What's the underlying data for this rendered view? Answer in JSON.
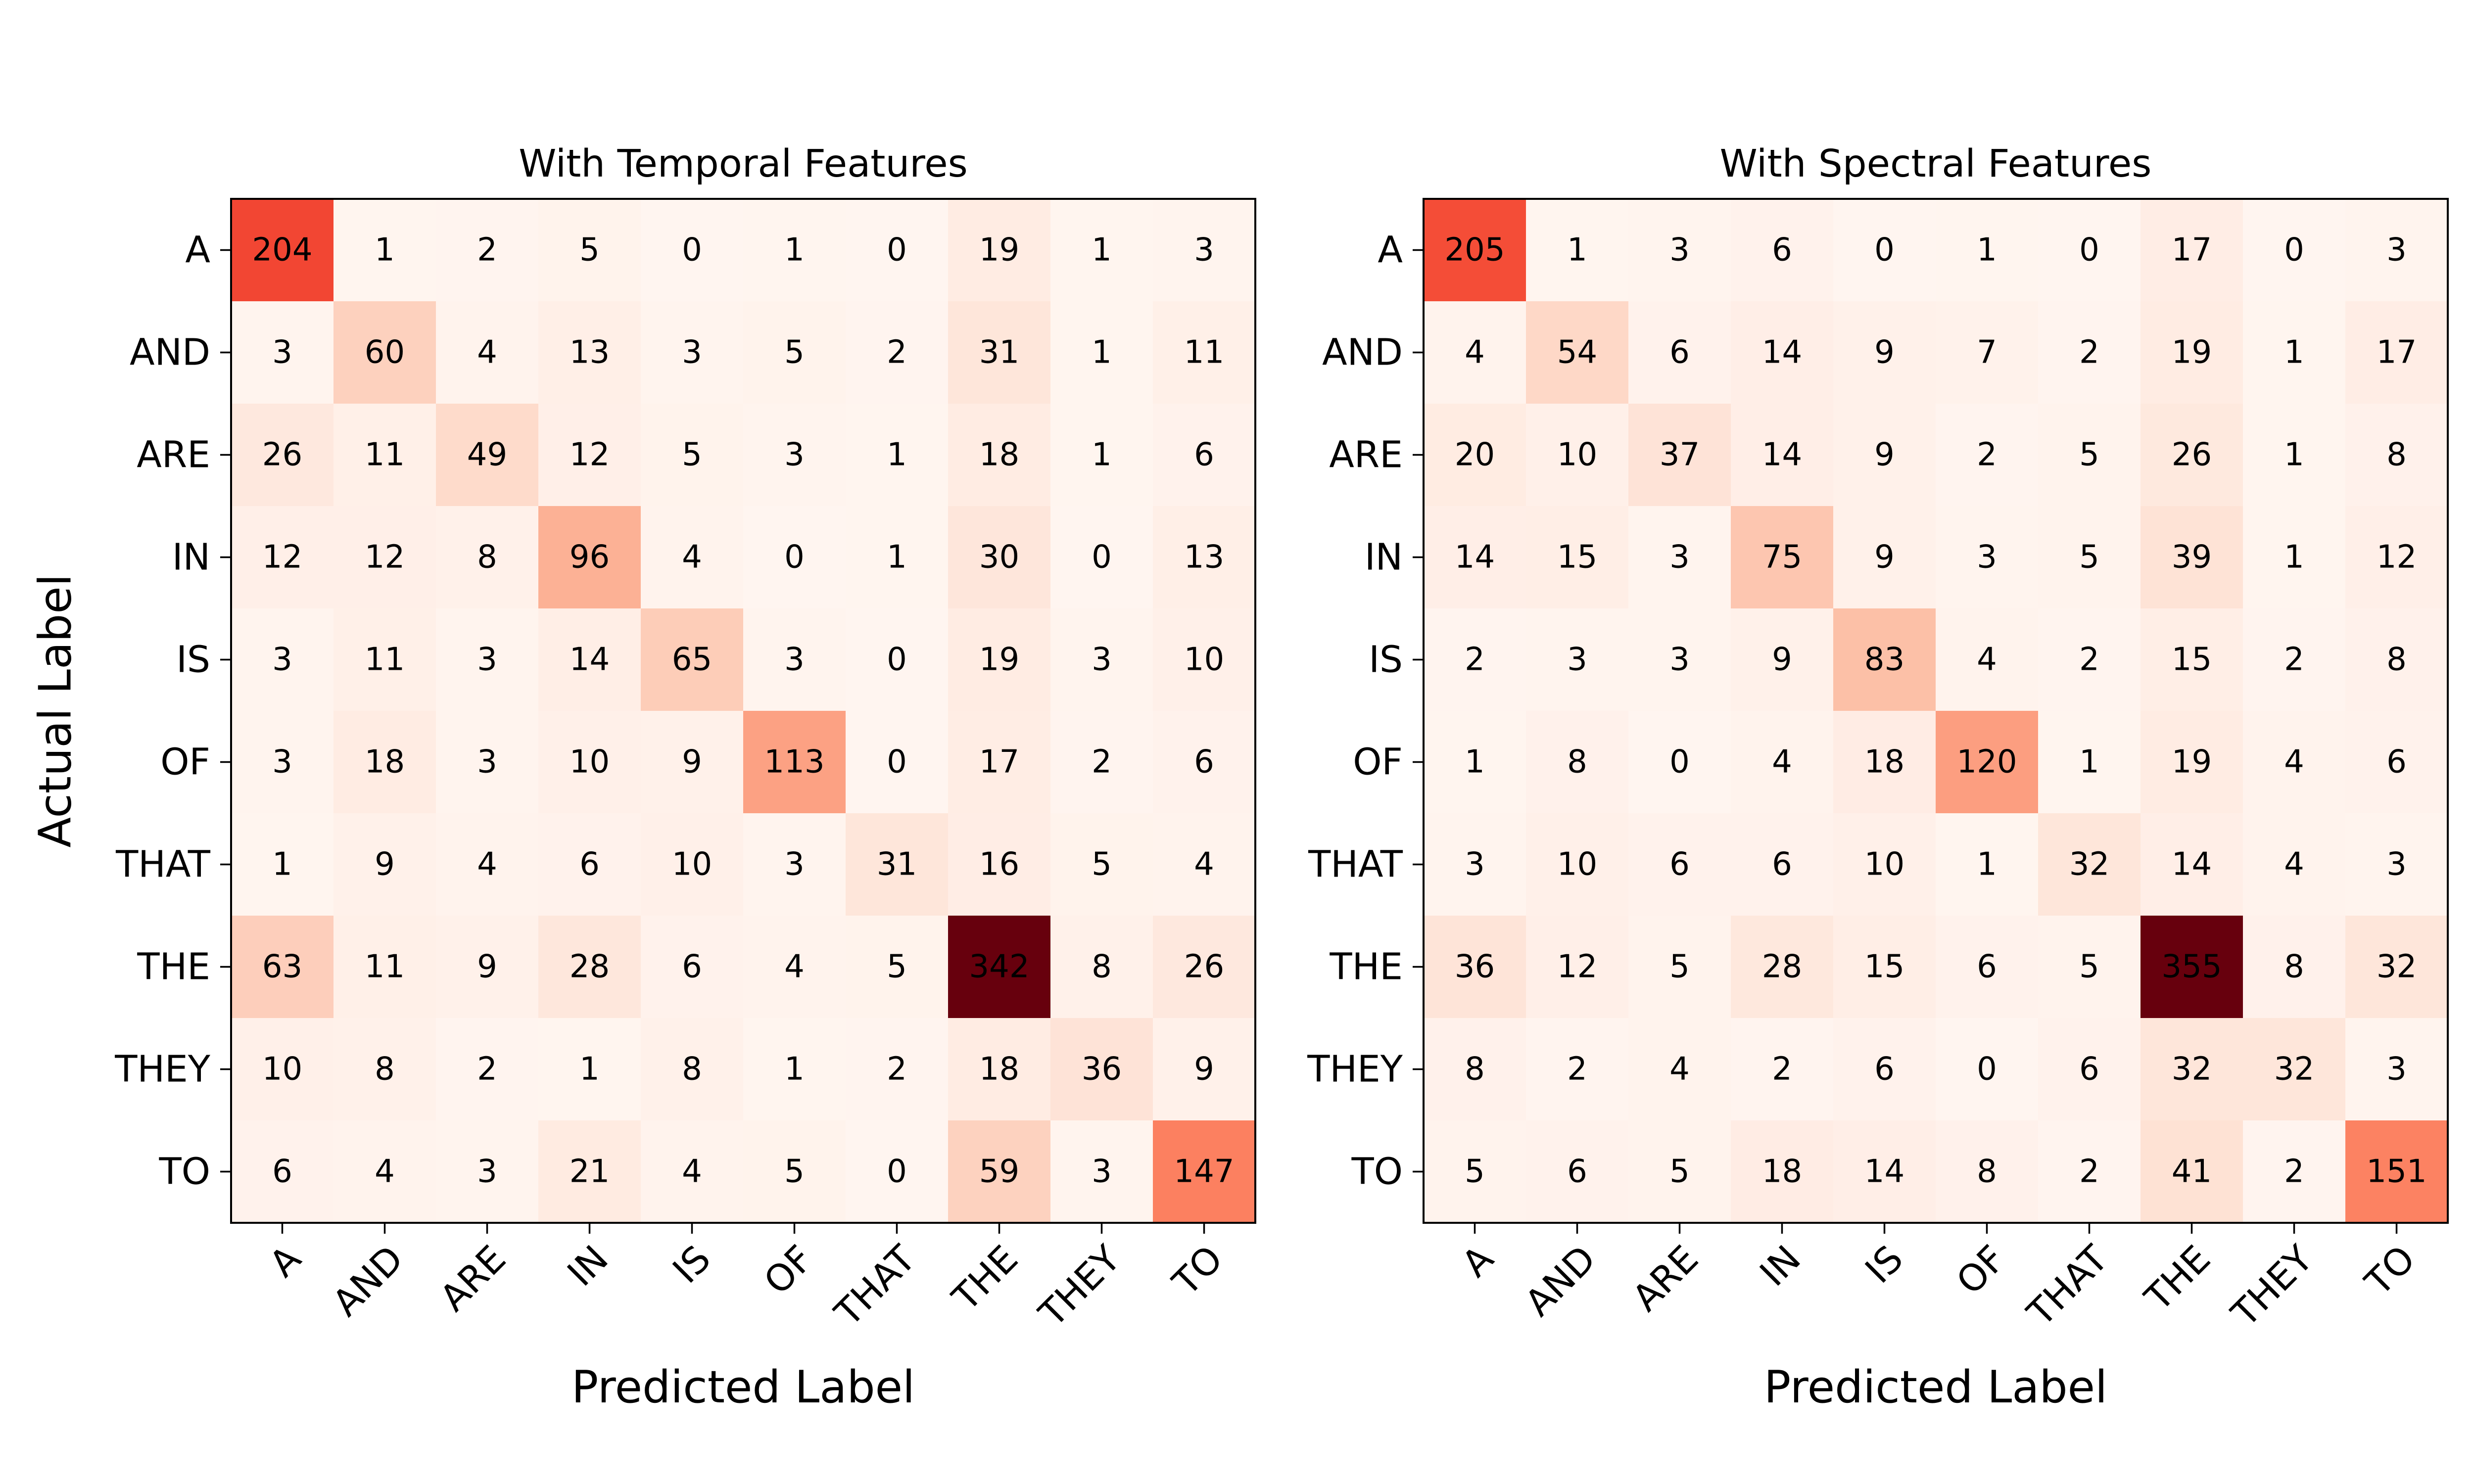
{
  "chart_data": [
    {
      "type": "heatmap",
      "title": "With Temporal Features",
      "xlabel": "Predicted Label",
      "ylabel": "Actual Label",
      "x_categories": [
        "A",
        "AND",
        "ARE",
        "IN",
        "IS",
        "OF",
        "THAT",
        "THE",
        "THEY",
        "TO"
      ],
      "y_categories": [
        "A",
        "AND",
        "ARE",
        "IN",
        "IS",
        "OF",
        "THAT",
        "THE",
        "THEY",
        "TO"
      ],
      "colormap": "Reds",
      "values": [
        [
          204,
          1,
          2,
          5,
          0,
          1,
          0,
          19,
          1,
          3
        ],
        [
          3,
          60,
          4,
          13,
          3,
          5,
          2,
          31,
          1,
          11
        ],
        [
          26,
          11,
          49,
          12,
          5,
          3,
          1,
          18,
          1,
          6
        ],
        [
          12,
          12,
          8,
          96,
          4,
          0,
          1,
          30,
          0,
          13
        ],
        [
          3,
          11,
          3,
          14,
          65,
          3,
          0,
          19,
          3,
          10
        ],
        [
          3,
          18,
          3,
          10,
          9,
          113,
          0,
          17,
          2,
          6
        ],
        [
          1,
          9,
          4,
          6,
          10,
          3,
          31,
          16,
          5,
          4
        ],
        [
          63,
          11,
          9,
          28,
          6,
          4,
          5,
          342,
          8,
          26
        ],
        [
          10,
          8,
          2,
          1,
          8,
          1,
          2,
          18,
          36,
          9
        ],
        [
          6,
          4,
          3,
          21,
          4,
          5,
          0,
          59,
          3,
          147
        ]
      ]
    },
    {
      "type": "heatmap",
      "title": "With Spectral Features",
      "xlabel": "Predicted Label",
      "ylabel": "",
      "x_categories": [
        "A",
        "AND",
        "ARE",
        "IN",
        "IS",
        "OF",
        "THAT",
        "THE",
        "THEY",
        "TO"
      ],
      "y_categories": [
        "A",
        "AND",
        "ARE",
        "IN",
        "IS",
        "OF",
        "THAT",
        "THE",
        "THEY",
        "TO"
      ],
      "colormap": "Reds",
      "values": [
        [
          205,
          1,
          3,
          6,
          0,
          1,
          0,
          17,
          0,
          3
        ],
        [
          4,
          54,
          6,
          14,
          9,
          7,
          2,
          19,
          1,
          17
        ],
        [
          20,
          10,
          37,
          14,
          9,
          2,
          5,
          26,
          1,
          8
        ],
        [
          14,
          15,
          3,
          75,
          9,
          3,
          5,
          39,
          1,
          12
        ],
        [
          2,
          3,
          3,
          9,
          83,
          4,
          2,
          15,
          2,
          8
        ],
        [
          1,
          8,
          0,
          4,
          18,
          120,
          1,
          19,
          4,
          6
        ],
        [
          3,
          10,
          6,
          6,
          10,
          1,
          32,
          14,
          4,
          3
        ],
        [
          36,
          12,
          5,
          28,
          15,
          6,
          5,
          355,
          8,
          32
        ],
        [
          8,
          2,
          4,
          2,
          6,
          0,
          6,
          32,
          32,
          3
        ],
        [
          5,
          6,
          5,
          18,
          14,
          8,
          2,
          41,
          2,
          151
        ]
      ]
    }
  ]
}
